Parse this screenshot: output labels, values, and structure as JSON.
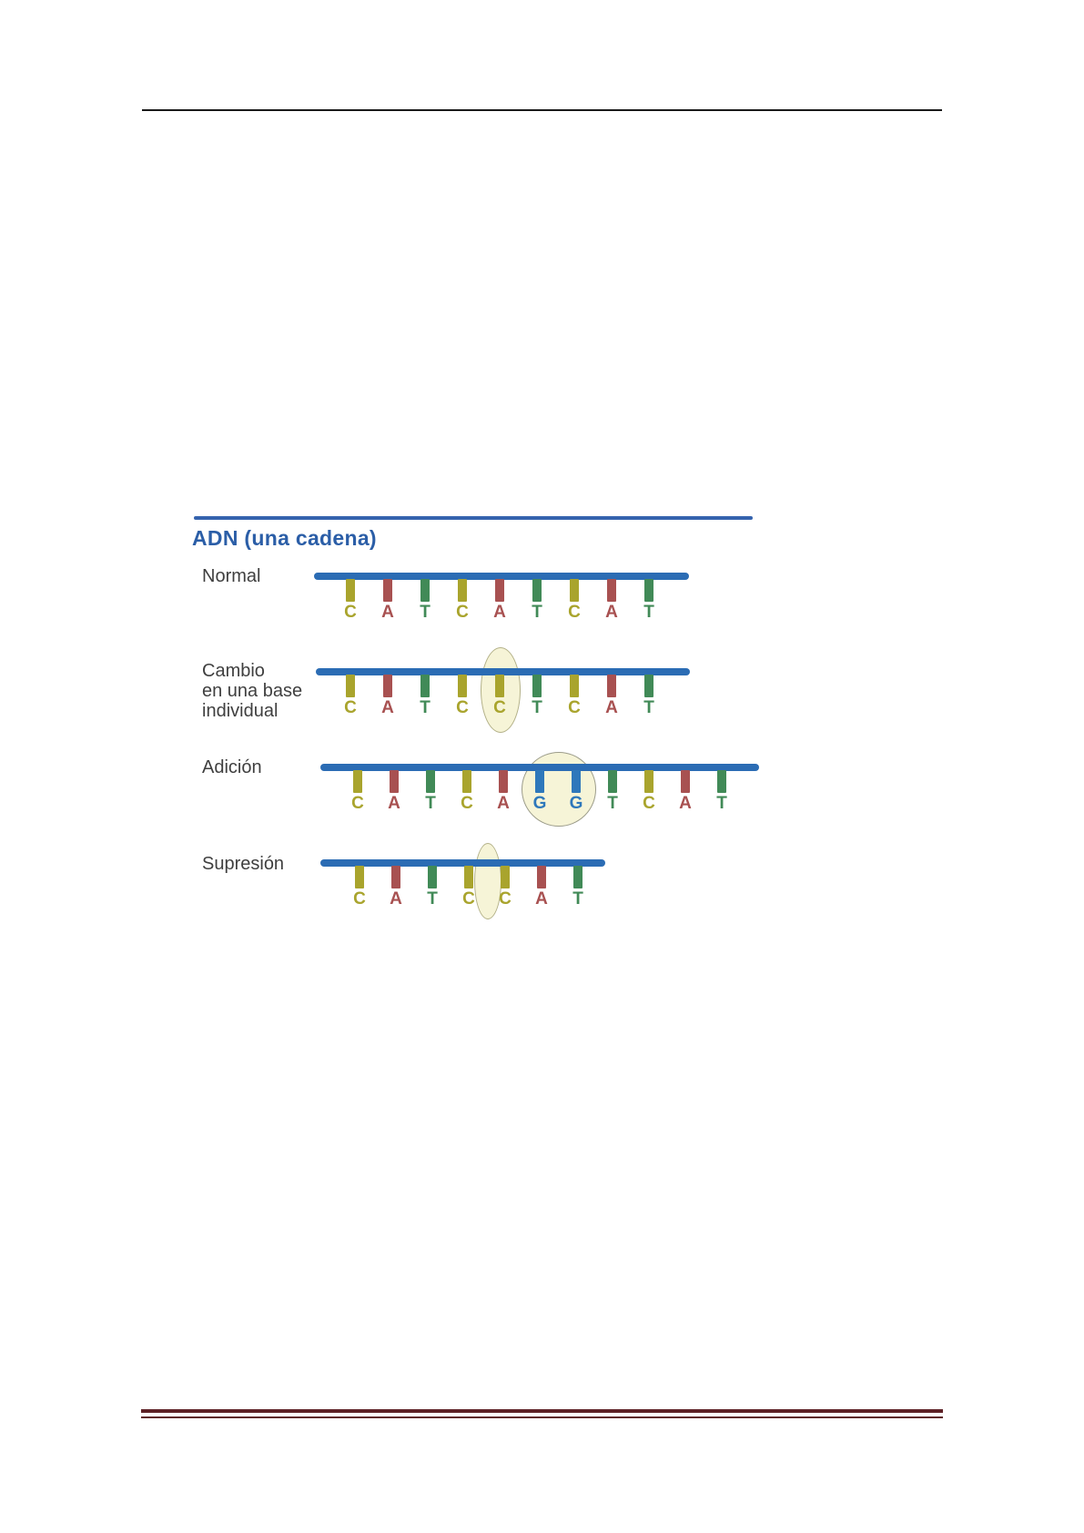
{
  "document": {
    "top_rule_color": "#1a1a1a",
    "bottom_rule_color": "#5d2126"
  },
  "figure": {
    "title": "ADN (una cadena)",
    "title_color": "#2b5ea7",
    "title_rule_color": "#3563ae",
    "backbone_color": "#2b6cb4",
    "label_color": "#3f3f3f",
    "base_colors": {
      "C": "#a9a42d",
      "A": "#a85151",
      "T": "#418a57",
      "G": "#2e78bb"
    },
    "highlight_fill": "#f6f4d7",
    "highlight_border_ellipse": "#b3b188",
    "highlight_border_circle": "#9c9c8a",
    "rows": [
      {
        "label_lines": [
          "Normal"
        ],
        "sequence": [
          "C",
          "A",
          "T",
          "C",
          "A",
          "T",
          "C",
          "A",
          "T"
        ],
        "highlight": null
      },
      {
        "label_lines": [
          "Cambio",
          "en una base",
          "individual"
        ],
        "sequence": [
          "C",
          "A",
          "T",
          "C",
          "C",
          "T",
          "C",
          "A",
          "T"
        ],
        "highlight": {
          "shape": "ellipse",
          "base_indices": [
            4
          ]
        }
      },
      {
        "label_lines": [
          "Adición"
        ],
        "sequence": [
          "C",
          "A",
          "T",
          "C",
          "A",
          "G",
          "G",
          "T",
          "C",
          "A",
          "T"
        ],
        "highlight": {
          "shape": "circle",
          "base_indices": [
            5,
            6
          ]
        }
      },
      {
        "label_lines": [
          "Supresión"
        ],
        "sequence": [
          "C",
          "A",
          "T",
          "C",
          "C",
          "A",
          "T"
        ],
        "highlight": {
          "shape": "gap-ellipse",
          "between_base_indices": [
            3,
            4
          ]
        }
      }
    ]
  }
}
